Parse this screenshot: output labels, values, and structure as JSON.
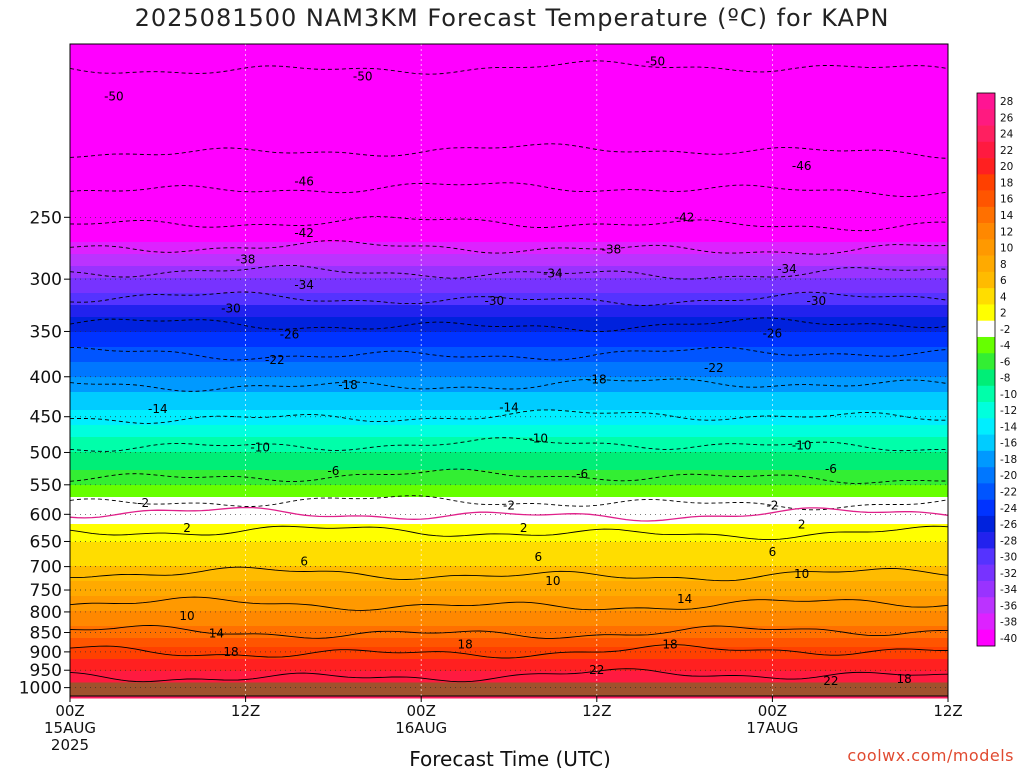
{
  "title": "2025081500 NAM3KM Forecast Temperature (ºC) for KAPN",
  "credit": "coolwx.com/models",
  "chart_data": {
    "type": "heatmap",
    "title": "2025081500 NAM3KM Forecast Temperature (ºC) for KAPN",
    "xlabel": "Forecast Time (UTC)",
    "ylabel": "",
    "x_hours_range": [
      0,
      60
    ],
    "y_pressure_range": [
      1025,
      150
    ],
    "y_ticks": [
      250,
      300,
      350,
      400,
      450,
      500,
      550,
      600,
      650,
      700,
      750,
      800,
      850,
      900,
      950,
      1000
    ],
    "x_ticks": [
      {
        "hour": 0,
        "lines": [
          "00Z",
          "15AUG",
          "2025"
        ]
      },
      {
        "hour": 12,
        "lines": [
          "12Z"
        ]
      },
      {
        "hour": 24,
        "lines": [
          "00Z",
          "16AUG"
        ]
      },
      {
        "hour": 36,
        "lines": [
          "12Z"
        ]
      },
      {
        "hour": 48,
        "lines": [
          "00Z",
          "17AUG"
        ]
      },
      {
        "hour": 60,
        "lines": [
          "12Z"
        ]
      }
    ],
    "surface_pressure": 985,
    "temperature_profile": [
      {
        "p": 1000,
        "t": 24
      },
      {
        "p": 950,
        "t": 21
      },
      {
        "p": 900,
        "t": 18
      },
      {
        "p": 850,
        "t": 14
      },
      {
        "p": 800,
        "t": 11
      },
      {
        "p": 750,
        "t": 8
      },
      {
        "p": 700,
        "t": 5
      },
      {
        "p": 650,
        "t": 3
      },
      {
        "p": 600,
        "t": 0
      },
      {
        "p": 550,
        "t": -5
      },
      {
        "p": 500,
        "t": -9
      },
      {
        "p": 450,
        "t": -14
      },
      {
        "p": 400,
        "t": -19
      },
      {
        "p": 350,
        "t": -25
      },
      {
        "p": 300,
        "t": -33
      },
      {
        "p": 250,
        "t": -43
      },
      {
        "p": 200,
        "t": -51
      },
      {
        "p": 150,
        "t": -55
      }
    ],
    "contour_labels": [
      {
        "text": "-50",
        "hour": 3,
        "p": 175
      },
      {
        "text": "-50",
        "hour": 20,
        "p": 165
      },
      {
        "text": "-50",
        "hour": 40,
        "p": 158
      },
      {
        "text": "-46",
        "hour": 16,
        "p": 225
      },
      {
        "text": "-46",
        "hour": 50,
        "p": 215
      },
      {
        "text": "-42",
        "hour": 16,
        "p": 262
      },
      {
        "text": "-42",
        "hour": 42,
        "p": 250
      },
      {
        "text": "-38",
        "hour": 12,
        "p": 283
      },
      {
        "text": "-38",
        "hour": 37,
        "p": 275
      },
      {
        "text": "-34",
        "hour": 16,
        "p": 305
      },
      {
        "text": "-34",
        "hour": 33,
        "p": 295
      },
      {
        "text": "-34",
        "hour": 49,
        "p": 291
      },
      {
        "text": "-30",
        "hour": 11,
        "p": 327
      },
      {
        "text": "-30",
        "hour": 29,
        "p": 320
      },
      {
        "text": "-30",
        "hour": 51,
        "p": 320
      },
      {
        "text": "-26",
        "hour": 15,
        "p": 353
      },
      {
        "text": "-26",
        "hour": 48,
        "p": 352
      },
      {
        "text": "-22",
        "hour": 14,
        "p": 381
      },
      {
        "text": "-22",
        "hour": 44,
        "p": 390
      },
      {
        "text": "-18",
        "hour": 19,
        "p": 410
      },
      {
        "text": "-18",
        "hour": 36,
        "p": 403
      },
      {
        "text": "-14",
        "hour": 6,
        "p": 440
      },
      {
        "text": "-14",
        "hour": 30,
        "p": 438
      },
      {
        "text": "-10",
        "hour": 13,
        "p": 493
      },
      {
        "text": "-10",
        "hour": 32,
        "p": 480
      },
      {
        "text": "-10",
        "hour": 50,
        "p": 490
      },
      {
        "text": "-6",
        "hour": 18,
        "p": 528
      },
      {
        "text": "-6",
        "hour": 35,
        "p": 533
      },
      {
        "text": "-6",
        "hour": 52,
        "p": 525
      },
      {
        "text": "-2",
        "hour": 5,
        "p": 580
      },
      {
        "text": "-2",
        "hour": 30,
        "p": 585
      },
      {
        "text": "-2",
        "hour": 48,
        "p": 585
      },
      {
        "text": "2",
        "hour": 8,
        "p": 625
      },
      {
        "text": "2",
        "hour": 31,
        "p": 625
      },
      {
        "text": "2",
        "hour": 50,
        "p": 618
      },
      {
        "text": "6",
        "hour": 16,
        "p": 690
      },
      {
        "text": "6",
        "hour": 32,
        "p": 680
      },
      {
        "text": "6",
        "hour": 48,
        "p": 670
      },
      {
        "text": "10",
        "hour": 33,
        "p": 730
      },
      {
        "text": "10",
        "hour": 50,
        "p": 715
      },
      {
        "text": "10",
        "hour": 8,
        "p": 810
      },
      {
        "text": "14",
        "hour": 42,
        "p": 770
      },
      {
        "text": "14",
        "hour": 10,
        "p": 852
      },
      {
        "text": "18",
        "hour": 11,
        "p": 900
      },
      {
        "text": "18",
        "hour": 27,
        "p": 880
      },
      {
        "text": "18",
        "hour": 41,
        "p": 880
      },
      {
        "text": "18",
        "hour": 57,
        "p": 975
      },
      {
        "text": "22",
        "hour": 36,
        "p": 950
      },
      {
        "text": "22",
        "hour": 52,
        "p": 980
      }
    ],
    "colorbar_labels": [
      "28",
      "26",
      "24",
      "22",
      "20",
      "18",
      "16",
      "14",
      "12",
      "10",
      "8",
      "6",
      "4",
      "2",
      "-2",
      "-4",
      "-6",
      "-8",
      "-10",
      "-12",
      "-14",
      "-16",
      "-18",
      "-20",
      "-22",
      "-24",
      "-26",
      "-28",
      "-30",
      "-32",
      "-34",
      "-36",
      "-38",
      "-40"
    ],
    "colorbar_colors": [
      "#ff1493",
      "#ff1a80",
      "#ff1f60",
      "#ff1a40",
      "#ff2020",
      "#ff4000",
      "#ff5500",
      "#ff7000",
      "#ff8800",
      "#ff9900",
      "#ffaa00",
      "#ffbb00",
      "#ffdd00",
      "#ffff00",
      "#ffffff",
      "#66ff00",
      "#33ee33",
      "#00ee77",
      "#00ffaa",
      "#00ffdd",
      "#00eeff",
      "#00ccff",
      "#0099ff",
      "#0077ff",
      "#0055ff",
      "#0033ff",
      "#0022dd",
      "#2222ee",
      "#5533ff",
      "#7733ff",
      "#9933ff",
      "#bb33ff",
      "#dd22ff",
      "#ff00ff"
    ],
    "legend": "right"
  }
}
